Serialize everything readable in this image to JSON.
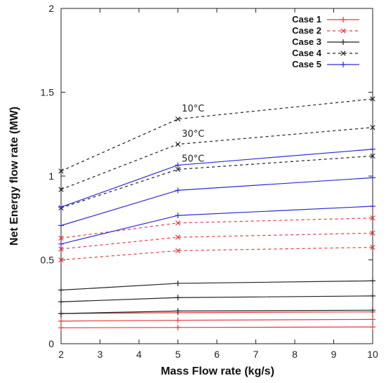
{
  "chart_data": {
    "type": "line",
    "title": "",
    "xlabel": "Mass Flow rate (kg/s)",
    "ylabel": "Net Energy flow rate (MW)",
    "xlim": [
      2,
      10
    ],
    "ylim": [
      0,
      2
    ],
    "xticks": [
      "2",
      "3",
      "4",
      "5",
      "6",
      "7",
      "8",
      "9",
      "10"
    ],
    "yticks": [
      "0",
      "0.5",
      "1",
      "1.5",
      "2"
    ],
    "grid": false,
    "legend_position": "top-right",
    "x": [
      2,
      5,
      10
    ],
    "legend": [
      {
        "label": "Case 1",
        "color": "#e8383d",
        "dash": "solid",
        "marker": "plus"
      },
      {
        "label": "Case 2",
        "color": "#e8383d",
        "dash": "dashed",
        "marker": "cross"
      },
      {
        "label": "Case 3",
        "color": "#222222",
        "dash": "solid",
        "marker": "plus"
      },
      {
        "label": "Case 4",
        "color": "#222222",
        "dash": "dashed",
        "marker": "cross"
      },
      {
        "label": "Case 5",
        "color": "#2b2bd6",
        "dash": "solid",
        "marker": "plus"
      }
    ],
    "series": [
      {
        "case": 1,
        "values": [
          0.18,
          0.185,
          0.19
        ],
        "color": "#e8383d",
        "dash": "solid",
        "marker": "plus"
      },
      {
        "case": 1,
        "values": [
          0.135,
          0.14,
          0.145
        ],
        "color": "#e8383d",
        "dash": "solid",
        "marker": "plus"
      },
      {
        "case": 1,
        "values": [
          0.095,
          0.097,
          0.1
        ],
        "color": "#e8383d",
        "dash": "solid",
        "marker": "plus"
      },
      {
        "case": 2,
        "values": [
          0.63,
          0.72,
          0.75
        ],
        "color": "#e8383d",
        "dash": "dashed",
        "marker": "cross"
      },
      {
        "case": 2,
        "values": [
          0.565,
          0.635,
          0.66
        ],
        "color": "#e8383d",
        "dash": "dashed",
        "marker": "cross"
      },
      {
        "case": 2,
        "values": [
          0.5,
          0.555,
          0.575
        ],
        "color": "#e8383d",
        "dash": "dashed",
        "marker": "cross"
      },
      {
        "case": 3,
        "values": [
          0.32,
          0.36,
          0.375
        ],
        "color": "#222222",
        "dash": "solid",
        "marker": "plus"
      },
      {
        "case": 3,
        "values": [
          0.25,
          0.275,
          0.285
        ],
        "color": "#222222",
        "dash": "solid",
        "marker": "plus"
      },
      {
        "case": 3,
        "values": [
          0.18,
          0.195,
          0.2
        ],
        "color": "#222222",
        "dash": "solid",
        "marker": "plus"
      },
      {
        "case": 4,
        "values": [
          1.03,
          1.34,
          1.46
        ],
        "color": "#222222",
        "dash": "dashed",
        "marker": "cross"
      },
      {
        "case": 4,
        "values": [
          0.92,
          1.19,
          1.29
        ],
        "color": "#222222",
        "dash": "dashed",
        "marker": "cross"
      },
      {
        "case": 4,
        "values": [
          0.81,
          1.04,
          1.12
        ],
        "color": "#222222",
        "dash": "dashed",
        "marker": "cross"
      },
      {
        "case": 5,
        "values": [
          0.815,
          1.065,
          1.16
        ],
        "color": "#2b2bd6",
        "dash": "solid",
        "marker": "plus"
      },
      {
        "case": 5,
        "values": [
          0.705,
          0.915,
          0.99
        ],
        "color": "#2b2bd6",
        "dash": "solid",
        "marker": "plus"
      },
      {
        "case": 5,
        "values": [
          0.595,
          0.765,
          0.82
        ],
        "color": "#2b2bd6",
        "dash": "solid",
        "marker": "plus"
      }
    ],
    "annotations": [
      {
        "text": "10°C",
        "x": 5.1,
        "y": 1.385
      },
      {
        "text": "30°C",
        "x": 5.1,
        "y": 1.235
      },
      {
        "text": "50°C",
        "x": 5.1,
        "y": 1.085
      }
    ]
  }
}
